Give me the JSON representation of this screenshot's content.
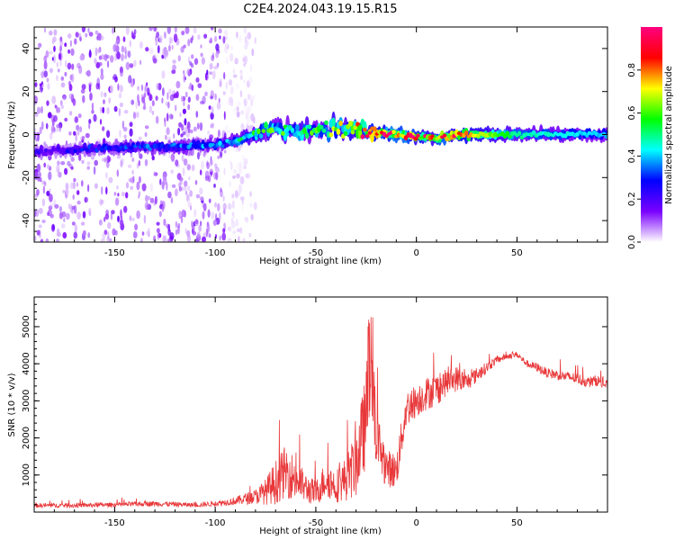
{
  "figure": {
    "title": "C2E4.2024.043.19.15.R15"
  },
  "chart_data": [
    {
      "type": "heatmap",
      "xlabel": "Height of straight line (km)",
      "ylabel": "Frequency (Hz)",
      "xlim": [
        -190,
        95
      ],
      "ylim": [
        -50,
        50
      ],
      "xticks": [
        -150,
        -100,
        -50,
        0,
        50
      ],
      "yticks": [
        -40,
        -20,
        0,
        20,
        40
      ],
      "colorbar": {
        "label": "Normalized spectral amplitude",
        "range": [
          0.0,
          1.0
        ],
        "ticks": [
          0.0,
          0.2,
          0.4,
          0.6,
          0.8
        ],
        "tick_labels": [
          "0.0",
          "0.2",
          "0.4",
          "0.6",
          "0.8"
        ],
        "colormap": [
          "#ffffff",
          "#7a00ff",
          "#0000ff",
          "#00ffff",
          "#00ff00",
          "#ffff00",
          "#ff0000",
          "#ff0080"
        ]
      },
      "ridge": {
        "x": [
          -190,
          -150,
          -100,
          -90,
          -80,
          -70,
          -60,
          -50,
          -40,
          -30,
          -25,
          -20,
          -10,
          0,
          10,
          20,
          50,
          95
        ],
        "frequency": [
          -8,
          -6,
          -5,
          -3,
          0,
          3,
          2,
          2,
          3,
          3,
          1,
          1,
          0,
          -1,
          -2,
          0,
          0,
          0
        ],
        "peak_amplitude": [
          0.2,
          0.3,
          0.35,
          0.45,
          0.5,
          0.55,
          0.5,
          0.55,
          0.6,
          0.75,
          0.9,
          0.95,
          0.9,
          0.85,
          0.8,
          0.85,
          0.5,
          0.4
        ]
      },
      "noise_region_x": [
        -190,
        -95
      ]
    },
    {
      "type": "line",
      "xlabel": "Height of straight line (km)",
      "ylabel": "SNR (10 * v/v)",
      "xlim": [
        -190,
        95
      ],
      "ylim": [
        0,
        5800
      ],
      "xticks": [
        -150,
        -100,
        -50,
        0,
        50
      ],
      "yticks": [
        1000,
        2000,
        3000,
        4000,
        5000
      ],
      "grid": false,
      "series": [
        {
          "color": "#e8383a",
          "x": [
            -190,
            -170,
            -150,
            -130,
            -110,
            -100,
            -90,
            -80,
            -75,
            -70,
            -65,
            -60,
            -55,
            -50,
            -45,
            -40,
            -35,
            -30,
            -25,
            -23,
            -20,
            -15,
            -10,
            -5,
            0,
            5,
            10,
            15,
            20,
            25,
            30,
            35,
            40,
            45,
            50,
            55,
            60,
            65,
            70,
            75,
            80,
            85,
            90,
            95
          ],
          "y": [
            180,
            180,
            200,
            230,
            190,
            230,
            300,
            420,
            550,
            800,
            1100,
            900,
            650,
            500,
            900,
            700,
            900,
            1300,
            2500,
            4200,
            2000,
            1200,
            1100,
            2800,
            3000,
            3200,
            3300,
            3500,
            3600,
            3500,
            3700,
            3900,
            4100,
            4200,
            4250,
            4000,
            3900,
            3750,
            3700,
            3650,
            3600,
            3500,
            3550,
            3400
          ],
          "noise": [
            60,
            60,
            60,
            70,
            60,
            70,
            110,
            200,
            350,
            600,
            700,
            600,
            400,
            350,
            500,
            450,
            600,
            900,
            1300,
            1500,
            900,
            500,
            500,
            500,
            450,
            450,
            450,
            350,
            350,
            250,
            200,
            150,
            100,
            80,
            80,
            100,
            120,
            130,
            140,
            140,
            150,
            150,
            150,
            150
          ]
        }
      ]
    }
  ]
}
